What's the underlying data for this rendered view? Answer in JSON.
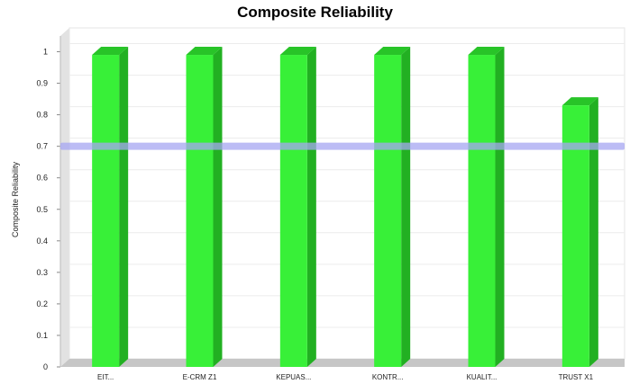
{
  "chart_data": {
    "type": "bar",
    "title": "Composite Reliability",
    "xlabel": "",
    "ylabel": "Composite Reliability",
    "categories": [
      "EIT...",
      "E-CRM Z1",
      "KEPUAS...",
      "KONTR...",
      "KUALIT...",
      "TRUST X1"
    ],
    "values": [
      0.99,
      0.99,
      0.99,
      0.99,
      0.99,
      0.83
    ],
    "ylim": [
      0,
      1.05
    ],
    "yticks": [
      0,
      0.1,
      0.2,
      0.3,
      0.4,
      0.5,
      0.6,
      0.7,
      0.8,
      0.9,
      1
    ],
    "ytick_labels": [
      "0",
      "0.1",
      "0.2",
      "0.3",
      "0.4",
      "0.5",
      "0.6",
      "0.7",
      "0.8",
      "0.9",
      "1"
    ],
    "threshold": 0.7,
    "grid": true,
    "legend": "none",
    "colors": {
      "bar": "#38f038",
      "bar_side": "#22b022",
      "bar_top": "#28c428",
      "threshold": "#a6a6f2",
      "wall": "#e2e2e2",
      "floor": "#c6c6c6"
    }
  }
}
